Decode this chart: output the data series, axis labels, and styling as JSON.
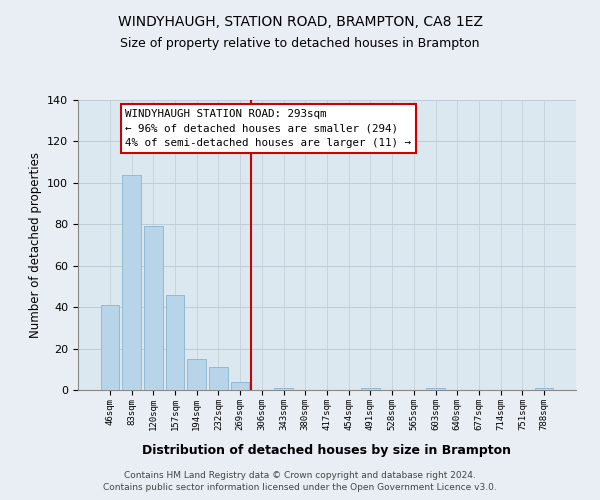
{
  "title": "WINDYHAUGH, STATION ROAD, BRAMPTON, CA8 1EZ",
  "subtitle": "Size of property relative to detached houses in Brampton",
  "xlabel": "Distribution of detached houses by size in Brampton",
  "ylabel": "Number of detached properties",
  "bar_labels": [
    "46sqm",
    "83sqm",
    "120sqm",
    "157sqm",
    "194sqm",
    "232sqm",
    "269sqm",
    "306sqm",
    "343sqm",
    "380sqm",
    "417sqm",
    "454sqm",
    "491sqm",
    "528sqm",
    "565sqm",
    "603sqm",
    "640sqm",
    "677sqm",
    "714sqm",
    "751sqm",
    "788sqm"
  ],
  "bar_values": [
    41,
    104,
    79,
    46,
    15,
    11,
    4,
    0,
    1,
    0,
    0,
    0,
    1,
    0,
    0,
    1,
    0,
    0,
    0,
    0,
    1
  ],
  "bar_color": "#b8d4e8",
  "bar_edge_color": "#8ab4d0",
  "ylim": [
    0,
    140
  ],
  "yticks": [
    0,
    20,
    40,
    60,
    80,
    100,
    120,
    140
  ],
  "vline_color": "#cc0000",
  "annotation_title": "WINDYHAUGH STATION ROAD: 293sqm",
  "annotation_line1": "← 96% of detached houses are smaller (294)",
  "annotation_line2": "4% of semi-detached houses are larger (11) →",
  "annotation_box_color": "#ffffff",
  "annotation_border_color": "#cc0000",
  "background_color": "#e8eef4",
  "plot_bg_color": "#dce8f0",
  "grid_color": "#c0ccd8",
  "footer1": "Contains HM Land Registry data © Crown copyright and database right 2024.",
  "footer2": "Contains public sector information licensed under the Open Government Licence v3.0."
}
